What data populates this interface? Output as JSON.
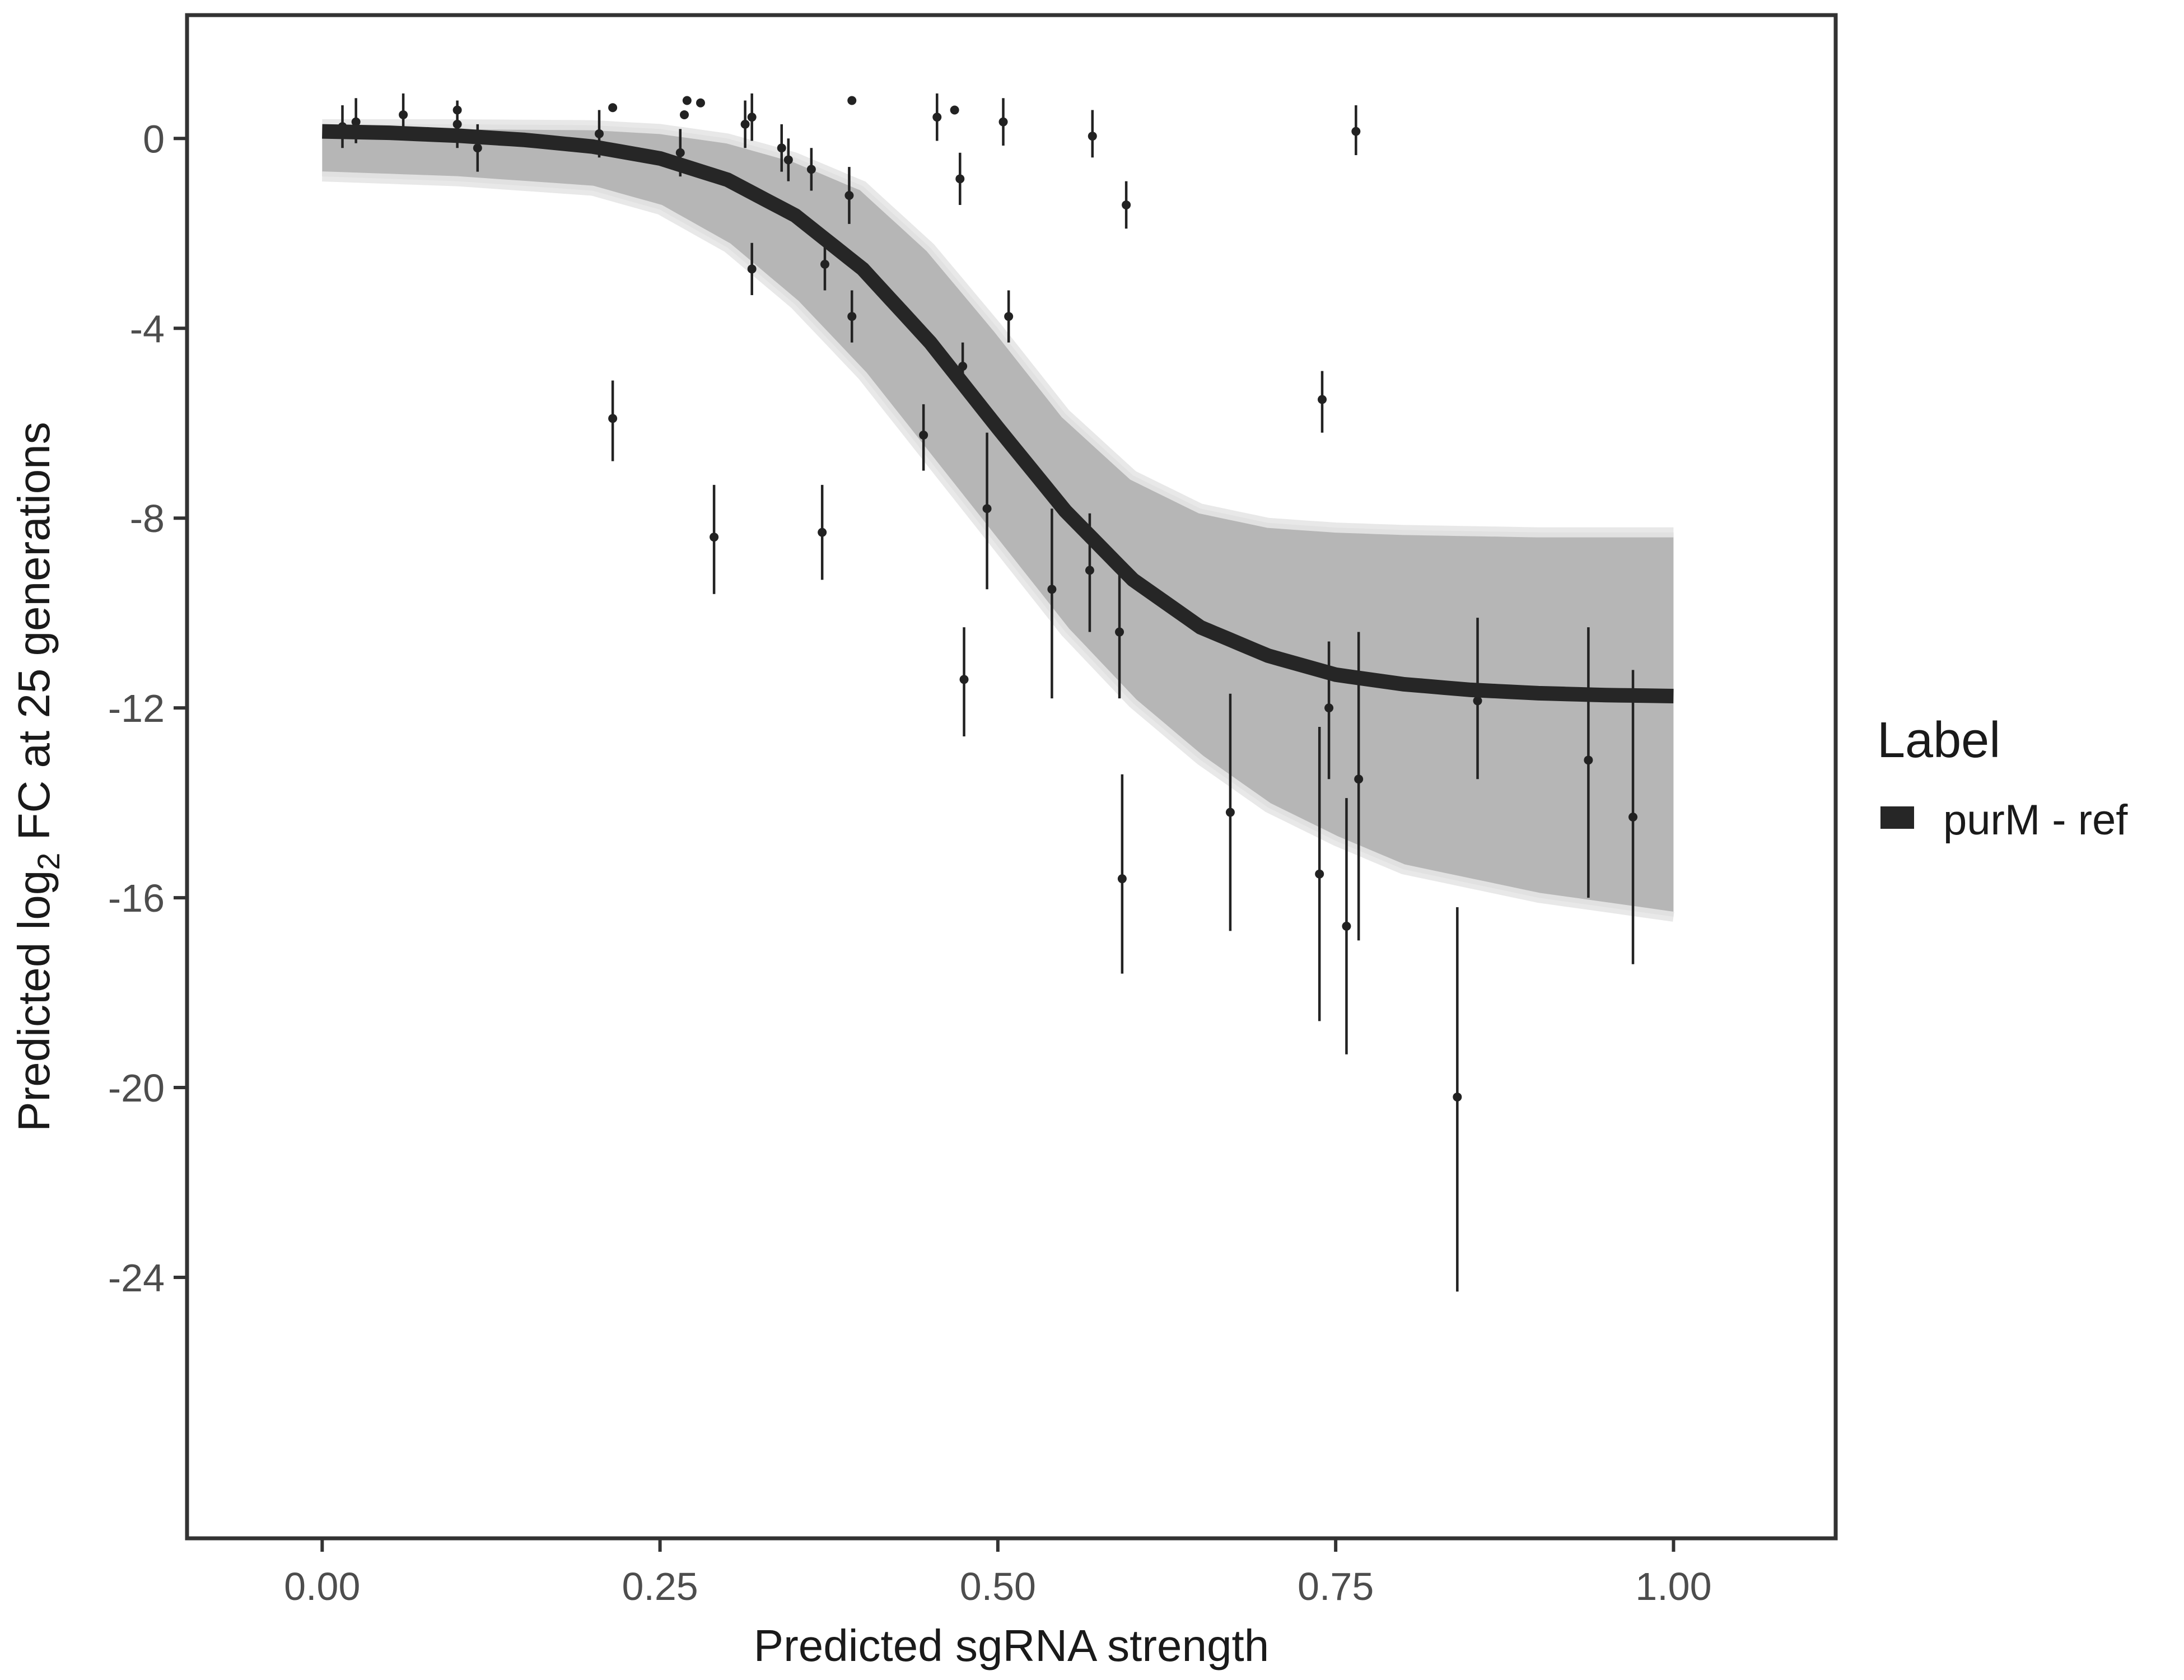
{
  "chart_data": {
    "type": "line",
    "xlabel": "Predicted sgRNA strength",
    "ylabel_prefix": "Predicted  log",
    "ylabel_sub": "2",
    "ylabel_suffix": " FC at 25 generations",
    "xlim": [
      -0.1,
      1.12
    ],
    "ylim": [
      -29.5,
      2.6
    ],
    "x_ticks": [
      0.0,
      0.25,
      0.5,
      0.75,
      1.0
    ],
    "x_tick_labels": [
      "0.00",
      "0.25",
      "0.50",
      "0.75",
      "1.00"
    ],
    "y_ticks": [
      0,
      -4,
      -8,
      -12,
      -16,
      -20,
      -24
    ],
    "y_tick_labels": [
      "0",
      "-4",
      "-8",
      "-12",
      "-16",
      "-20",
      "-24"
    ],
    "grid": false,
    "legend": {
      "title": "Label",
      "position": "right",
      "entries": [
        {
          "name": "purM - ref",
          "color": "#262626"
        }
      ]
    },
    "series": [
      {
        "name": "purM - ref",
        "kind": "fitted-curve",
        "color": "#262626",
        "x": [
          0.0,
          0.05,
          0.1,
          0.15,
          0.2,
          0.25,
          0.3,
          0.35,
          0.4,
          0.45,
          0.5,
          0.55,
          0.6,
          0.65,
          0.7,
          0.75,
          0.8,
          0.85,
          0.9,
          0.95,
          1.0
        ],
        "y": [
          0.15,
          0.12,
          0.06,
          -0.03,
          -0.17,
          -0.42,
          -0.87,
          -1.62,
          -2.75,
          -4.3,
          -6.1,
          -7.85,
          -9.3,
          -10.3,
          -10.9,
          -11.3,
          -11.5,
          -11.62,
          -11.69,
          -11.73,
          -11.75
        ]
      }
    ],
    "posterior_band": {
      "color": "#a9a9a9",
      "x": [
        0.0,
        0.1,
        0.2,
        0.25,
        0.3,
        0.35,
        0.4,
        0.45,
        0.5,
        0.55,
        0.6,
        0.65,
        0.7,
        0.75,
        0.8,
        0.9,
        1.0
      ],
      "upper": [
        0.3,
        0.3,
        0.28,
        0.2,
        0.0,
        -0.4,
        -1.0,
        -2.3,
        -4.0,
        -5.8,
        -7.1,
        -7.8,
        -8.1,
        -8.2,
        -8.25,
        -8.3,
        -8.3
      ],
      "lower": [
        -0.8,
        -0.9,
        -1.1,
        -1.5,
        -2.3,
        -3.5,
        -5.0,
        -6.8,
        -8.6,
        -10.4,
        -11.9,
        -13.1,
        -14.1,
        -14.8,
        -15.4,
        -16.0,
        -16.4
      ]
    },
    "observations": [
      {
        "x": 0.015,
        "y": 0.25,
        "lo": -0.2,
        "hi": 0.7
      },
      {
        "x": 0.025,
        "y": 0.35,
        "lo": -0.1,
        "hi": 0.85
      },
      {
        "x": 0.06,
        "y": 0.5,
        "lo": 0.1,
        "hi": 0.95
      },
      {
        "x": 0.1,
        "y": 0.6
      },
      {
        "x": 0.1,
        "y": 0.3,
        "lo": -0.2,
        "hi": 0.8
      },
      {
        "x": 0.115,
        "y": -0.2,
        "lo": -0.7,
        "hi": 0.3
      },
      {
        "x": 0.205,
        "y": 0.1,
        "lo": -0.4,
        "hi": 0.6
      },
      {
        "x": 0.215,
        "y": 0.65
      },
      {
        "x": 0.215,
        "y": -5.9,
        "lo": -6.8,
        "hi": -5.1
      },
      {
        "x": 0.265,
        "y": -0.3,
        "lo": -0.8,
        "hi": 0.2
      },
      {
        "x": 0.268,
        "y": 0.5
      },
      {
        "x": 0.27,
        "y": 0.8
      },
      {
        "x": 0.28,
        "y": 0.75
      },
      {
        "x": 0.29,
        "y": -8.4,
        "lo": -9.6,
        "hi": -7.3
      },
      {
        "x": 0.313,
        "y": 0.3,
        "lo": -0.2,
        "hi": 0.8
      },
      {
        "x": 0.318,
        "y": 0.45,
        "lo": -0.05,
        "hi": 0.95
      },
      {
        "x": 0.318,
        "y": -2.75,
        "lo": -3.3,
        "hi": -2.2
      },
      {
        "x": 0.34,
        "y": -0.2,
        "lo": -0.7,
        "hi": 0.3
      },
      {
        "x": 0.345,
        "y": -0.45,
        "lo": -0.9,
        "hi": 0.0
      },
      {
        "x": 0.362,
        "y": -0.65,
        "lo": -1.1,
        "hi": -0.2
      },
      {
        "x": 0.37,
        "y": -8.3,
        "lo": -9.3,
        "hi": -7.3
      },
      {
        "x": 0.372,
        "y": -2.65,
        "lo": -3.2,
        "hi": -2.1
      },
      {
        "x": 0.39,
        "y": -1.2,
        "lo": -1.8,
        "hi": -0.6
      },
      {
        "x": 0.392,
        "y": 0.8
      },
      {
        "x": 0.392,
        "y": -3.75,
        "lo": -4.3,
        "hi": -3.2
      },
      {
        "x": 0.445,
        "y": -6.25,
        "lo": -7.0,
        "hi": -5.6
      },
      {
        "x": 0.455,
        "y": 0.45,
        "lo": -0.05,
        "hi": 0.95
      },
      {
        "x": 0.468,
        "y": 0.6
      },
      {
        "x": 0.472,
        "y": -0.85,
        "lo": -1.4,
        "hi": -0.3
      },
      {
        "x": 0.474,
        "y": -4.8,
        "lo": -5.3,
        "hi": -4.3
      },
      {
        "x": 0.475,
        "y": -11.4,
        "lo": -12.6,
        "hi": -10.3
      },
      {
        "x": 0.492,
        "y": -7.8,
        "lo": -9.5,
        "hi": -6.2
      },
      {
        "x": 0.504,
        "y": 0.35,
        "lo": -0.15,
        "hi": 0.85
      },
      {
        "x": 0.508,
        "y": -3.75,
        "lo": -4.3,
        "hi": -3.2
      },
      {
        "x": 0.54,
        "y": -9.5,
        "lo": -11.8,
        "hi": -7.8
      },
      {
        "x": 0.568,
        "y": -9.1,
        "lo": -10.4,
        "hi": -7.9
      },
      {
        "x": 0.57,
        "y": 0.05,
        "lo": -0.4,
        "hi": 0.6
      },
      {
        "x": 0.59,
        "y": -10.4,
        "lo": -11.8,
        "hi": -9.2
      },
      {
        "x": 0.592,
        "y": -15.6,
        "lo": -17.6,
        "hi": -13.4
      },
      {
        "x": 0.595,
        "y": -1.4,
        "lo": -1.9,
        "hi": -0.9
      },
      {
        "x": 0.672,
        "y": -14.2,
        "lo": -16.7,
        "hi": -11.7
      },
      {
        "x": 0.738,
        "y": -15.5,
        "lo": -18.6,
        "hi": -12.4
      },
      {
        "x": 0.74,
        "y": -5.5,
        "lo": -6.2,
        "hi": -4.9
      },
      {
        "x": 0.745,
        "y": -12.0,
        "lo": -13.5,
        "hi": -10.6
      },
      {
        "x": 0.758,
        "y": -16.6,
        "lo": -19.3,
        "hi": -13.9
      },
      {
        "x": 0.765,
        "y": 0.15,
        "lo": -0.35,
        "hi": 0.7
      },
      {
        "x": 0.767,
        "y": -13.5,
        "lo": -16.9,
        "hi": -10.4
      },
      {
        "x": 0.84,
        "y": -20.2,
        "lo": -24.3,
        "hi": -16.2
      },
      {
        "x": 0.855,
        "y": -11.85,
        "lo": -13.5,
        "hi": -10.1
      },
      {
        "x": 0.937,
        "y": -13.1,
        "lo": -16.0,
        "hi": -10.3
      },
      {
        "x": 0.97,
        "y": -14.3,
        "lo": -17.4,
        "hi": -11.2
      }
    ]
  }
}
